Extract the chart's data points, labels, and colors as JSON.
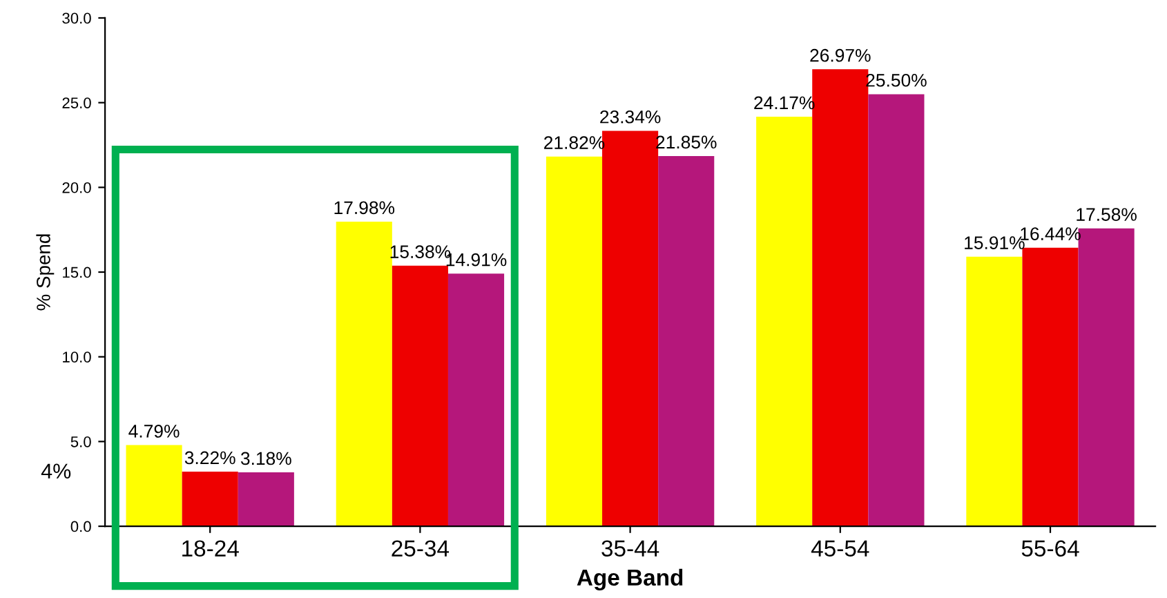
{
  "chart_data": {
    "type": "bar",
    "xlabel": "Age Band",
    "ylabel": "% Spend",
    "categories": [
      "18-24",
      "25-34",
      "35-44",
      "45-54",
      "55-64"
    ],
    "series": [
      {
        "color": "#ffff00",
        "values": [
          4.79,
          17.98,
          21.82,
          24.17,
          15.91
        ],
        "value_labels": [
          "4.79%",
          "17.98%",
          "21.82%",
          "24.17%",
          "15.91%"
        ]
      },
      {
        "color": "#ee0000",
        "values": [
          3.22,
          15.38,
          23.34,
          26.97,
          16.44
        ],
        "value_labels": [
          "3.22%",
          "15.38%",
          "23.34%",
          "26.97%",
          "16.44%"
        ]
      },
      {
        "color": "#b5177b",
        "values": [
          3.18,
          14.91,
          21.85,
          25.5,
          17.58
        ],
        "value_labels": [
          "3.18%",
          "14.91%",
          "21.85%",
          "25.50%",
          "17.58%"
        ]
      }
    ],
    "ylim": [
      0,
      30
    ],
    "yticks": [
      {
        "value": 0,
        "label": "0.0"
      },
      {
        "value": 5,
        "label": "5.0"
      },
      {
        "value": 10,
        "label": "10.0"
      },
      {
        "value": 15,
        "label": "15.0"
      },
      {
        "value": 20,
        "label": "20.0"
      },
      {
        "value": 25,
        "label": "25.0"
      },
      {
        "value": 30,
        "label": "30.0"
      }
    ],
    "annotations": [
      "4%"
    ],
    "grid": false
  }
}
